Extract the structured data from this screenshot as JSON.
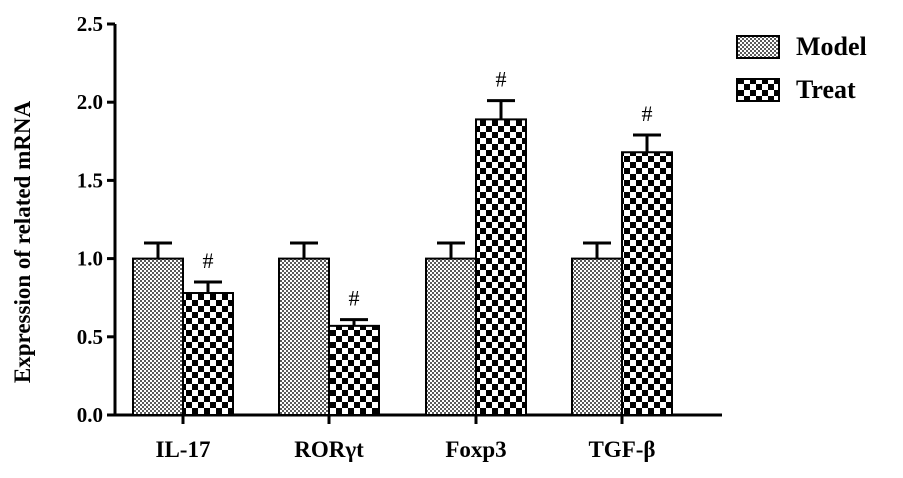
{
  "chart_data": {
    "type": "bar",
    "title": "",
    "xlabel": "",
    "ylabel": "Expression of related mRNA",
    "ylim": [
      0,
      2.5
    ],
    "yticks": [
      "0.0",
      "0.5",
      "1.0",
      "1.5",
      "2.0",
      "2.5"
    ],
    "categories": [
      "IL-17",
      "RORγt",
      "Foxp3",
      "TGF-β"
    ],
    "series": [
      {
        "name": "Model",
        "values": [
          1.0,
          1.0,
          1.0,
          1.0
        ],
        "errors": [
          0.1,
          0.1,
          0.1,
          0.1
        ],
        "marks": [
          "",
          "",
          "",
          ""
        ]
      },
      {
        "name": "Treat",
        "values": [
          0.78,
          0.57,
          1.89,
          1.68
        ],
        "errors": [
          0.07,
          0.04,
          0.12,
          0.11
        ],
        "marks": [
          "#",
          "#",
          "#",
          "#"
        ]
      }
    ],
    "legend": "top-right",
    "grid": false
  }
}
